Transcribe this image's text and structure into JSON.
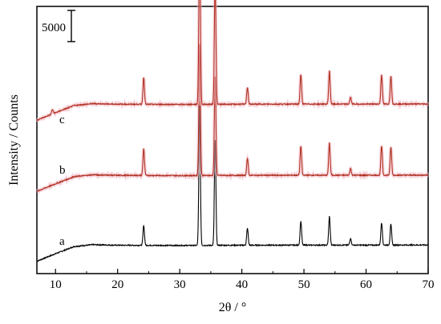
{
  "chart_data": {
    "type": "line",
    "xlabel": "2θ / °",
    "ylabel": "Intensity / Counts",
    "xlim": [
      7,
      70
    ],
    "x_ticks": [
      "10",
      "20",
      "30",
      "40",
      "50",
      "60",
      "70"
    ],
    "y_ticks_shown": false,
    "grid": false,
    "scale_bar": {
      "label": "5000",
      "value": 5000
    },
    "series": [
      {
        "name": "a",
        "color": "#000000",
        "baseline": 0,
        "background": [
          [
            7,
            -2500
          ],
          [
            10,
            -1300
          ],
          [
            13,
            -150
          ],
          [
            16,
            150
          ],
          [
            20,
            60
          ],
          [
            30,
            20
          ],
          [
            40,
            60
          ],
          [
            50,
            80
          ],
          [
            60,
            80
          ],
          [
            70,
            100
          ]
        ],
        "peaks": [
          [
            24.2,
            3200
          ],
          [
            33.2,
            22500
          ],
          [
            35.7,
            16800
          ],
          [
            40.9,
            2700
          ],
          [
            49.5,
            3800
          ],
          [
            54.1,
            4600
          ],
          [
            57.5,
            1100
          ],
          [
            62.5,
            3600
          ],
          [
            64.0,
            3300
          ]
        ]
      },
      {
        "name": "b",
        "color": "#b03020",
        "baseline": 11200,
        "background": [
          [
            7,
            -2500
          ],
          [
            10,
            -1300
          ],
          [
            13,
            -150
          ],
          [
            16,
            150
          ],
          [
            20,
            60
          ],
          [
            30,
            20
          ],
          [
            40,
            60
          ],
          [
            50,
            80
          ],
          [
            60,
            80
          ],
          [
            70,
            100
          ]
        ],
        "peaks": [
          [
            24.2,
            4300
          ],
          [
            33.2,
            21000
          ],
          [
            35.7,
            15800
          ],
          [
            40.9,
            2700
          ],
          [
            49.5,
            4700
          ],
          [
            54.1,
            5200
          ],
          [
            57.5,
            1100
          ],
          [
            62.5,
            4700
          ],
          [
            64.0,
            4500
          ]
        ]
      },
      {
        "name": "c",
        "color": "#b03020",
        "baseline": 22600,
        "background": [
          [
            7,
            -2500
          ],
          [
            10,
            -1300
          ],
          [
            13,
            -150
          ],
          [
            16,
            150
          ],
          [
            20,
            60
          ],
          [
            30,
            20
          ],
          [
            40,
            60
          ],
          [
            50,
            80
          ],
          [
            60,
            80
          ],
          [
            70,
            100
          ]
        ],
        "peaks": [
          [
            9.5,
            700
          ],
          [
            24.2,
            4300
          ],
          [
            33.2,
            27500
          ],
          [
            35.7,
            20000
          ],
          [
            40.9,
            2700
          ],
          [
            49.5,
            4700
          ],
          [
            54.1,
            5300
          ],
          [
            57.5,
            1100
          ],
          [
            62.5,
            4700
          ],
          [
            64.0,
            4500
          ]
        ]
      }
    ]
  }
}
